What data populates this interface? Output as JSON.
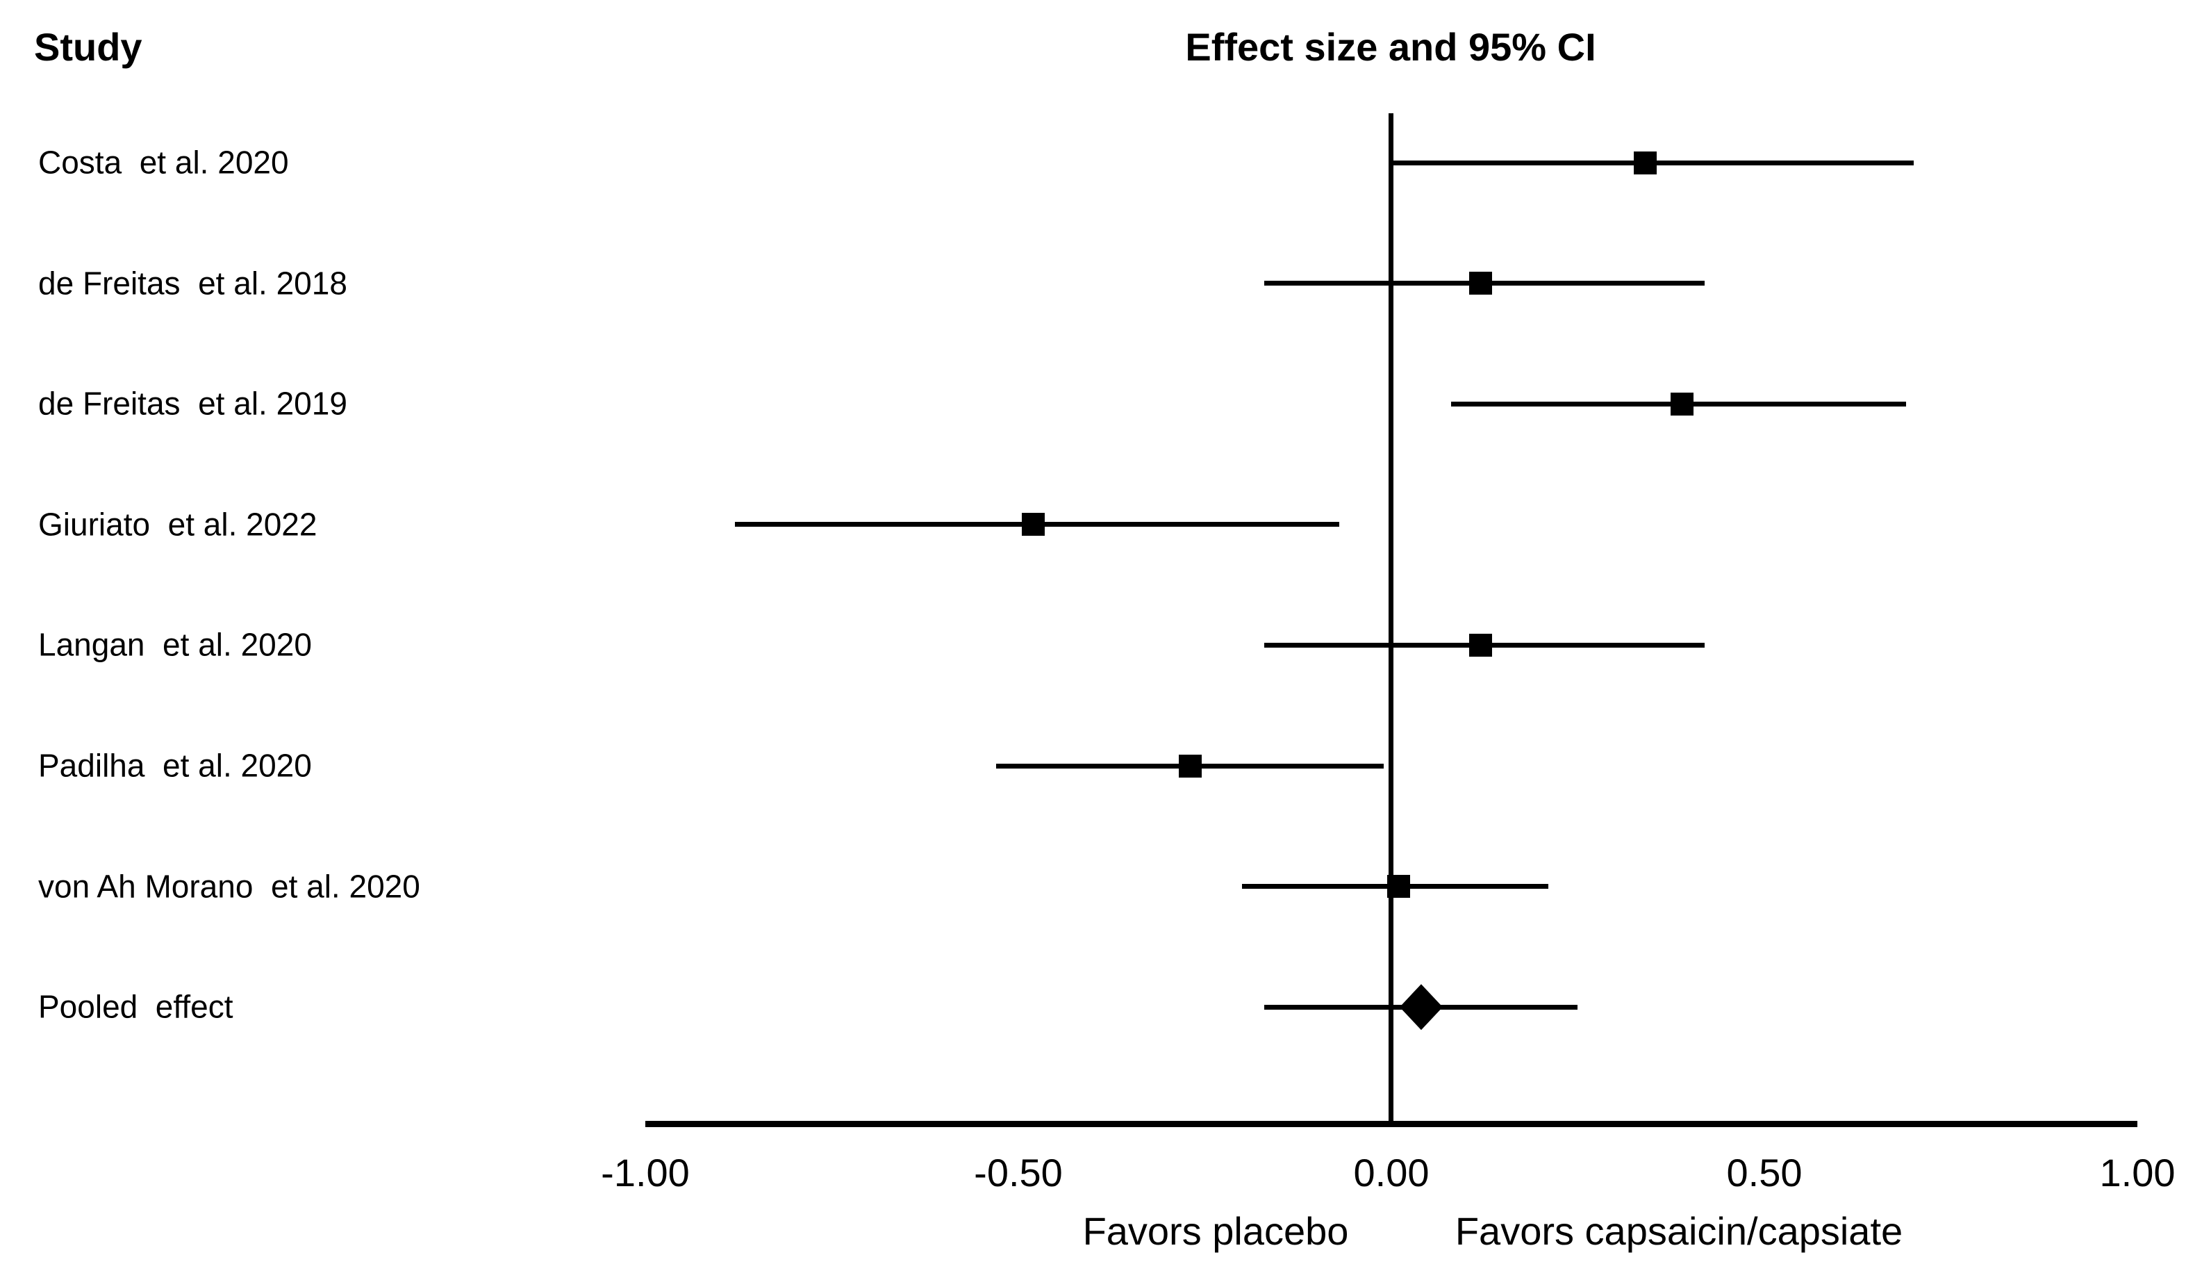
{
  "colors": {
    "ink": "#000000",
    "background": "#ffffff"
  },
  "chart_data": {
    "type": "scatter",
    "variant": "forest-plot",
    "title_left": "Study",
    "title_right": "Effect size and 95% CI",
    "xlim": [
      -1.0,
      1.0
    ],
    "grid": false,
    "zero_reference_line": 0.0,
    "xticks": [
      {
        "value": -1.0,
        "label": "-1.00"
      },
      {
        "value": -0.5,
        "label": "-0.50"
      },
      {
        "value": 0.0,
        "label": "0.00"
      },
      {
        "value": 0.5,
        "label": "0.50"
      },
      {
        "value": 1.0,
        "label": "1.00"
      }
    ],
    "x_direction_labels": {
      "left": "Favors placebo",
      "right": "Favors capsaicin/capsiate"
    },
    "studies": [
      {
        "label": "Costa  et al. 2020",
        "effect": 0.34,
        "ci_low": 0.0,
        "ci_high": 0.7,
        "marker": "square"
      },
      {
        "label": "de Freitas  et al. 2018",
        "effect": 0.12,
        "ci_low": -0.17,
        "ci_high": 0.42,
        "marker": "square"
      },
      {
        "label": "de Freitas  et al. 2019",
        "effect": 0.39,
        "ci_low": 0.08,
        "ci_high": 0.69,
        "marker": "square"
      },
      {
        "label": "Giuriato  et al. 2022",
        "effect": -0.48,
        "ci_low": -0.88,
        "ci_high": -0.07,
        "marker": "square"
      },
      {
        "label": "Langan  et al. 2020",
        "effect": 0.12,
        "ci_low": -0.17,
        "ci_high": 0.42,
        "marker": "square"
      },
      {
        "label": "Padilha  et al. 2020",
        "effect": -0.27,
        "ci_low": -0.53,
        "ci_high": -0.01,
        "marker": "square"
      },
      {
        "label": "von Ah Morano  et al. 2020",
        "effect": 0.01,
        "ci_low": -0.2,
        "ci_high": 0.21,
        "marker": "square"
      },
      {
        "label": "Pooled  effect",
        "effect": 0.04,
        "ci_low": -0.17,
        "ci_high": 0.25,
        "marker": "diamond"
      }
    ]
  }
}
